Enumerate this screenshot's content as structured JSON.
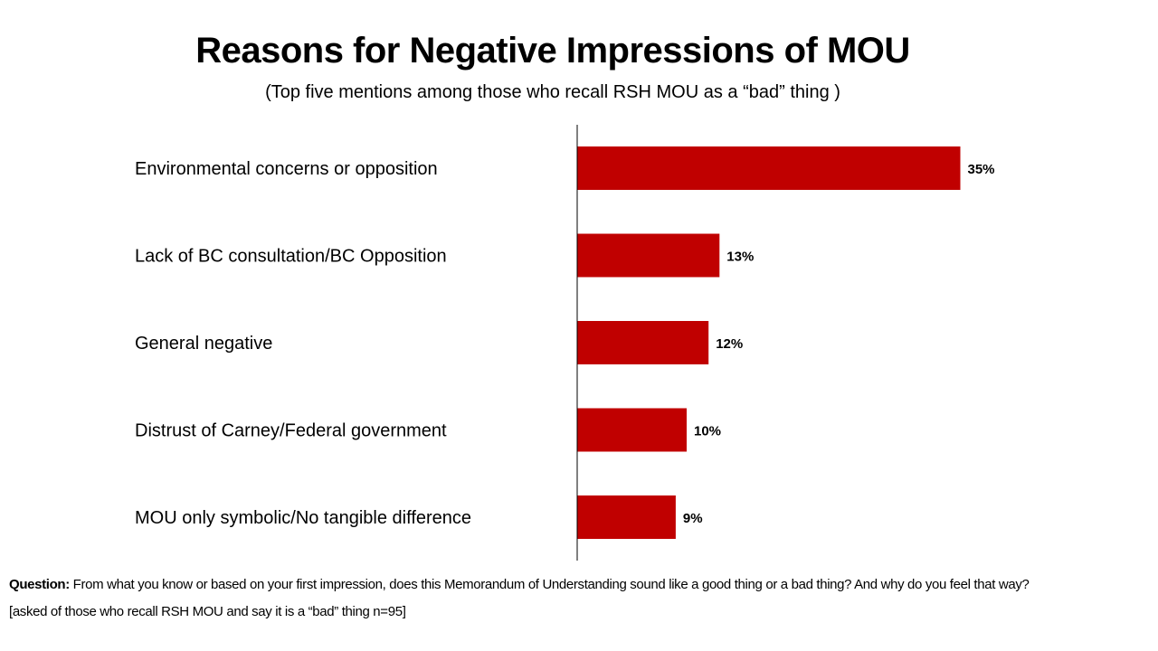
{
  "chart_data": {
    "type": "bar",
    "orientation": "horizontal",
    "title": "Reasons for Negative Impressions of MOU",
    "subtitle": "(Top five mentions among those who recall RSH MOU as a “bad” thing )",
    "categories": [
      "Environmental concerns or opposition",
      "Lack of BC consultation/BC Opposition",
      "General negative",
      "Distrust of Carney/Federal government",
      "MOU only symbolic/No tangible difference"
    ],
    "values": [
      35,
      13,
      12,
      10,
      9
    ],
    "data_labels": [
      "35%",
      "13%",
      "12%",
      "10%",
      "9%"
    ],
    "unit": "%",
    "xlim": [
      0,
      40
    ],
    "grid": false,
    "legend": "none",
    "bar_color": "#C00000"
  },
  "footnote": {
    "question_label": "Question:",
    "question_text": " From what you know or based on your first impression, does this Memorandum of Understanding sound like a good thing or a bad thing? And why do you feel that way?",
    "base": "[asked of those who recall RSH MOU and say it is a “bad” thing n=95]"
  }
}
